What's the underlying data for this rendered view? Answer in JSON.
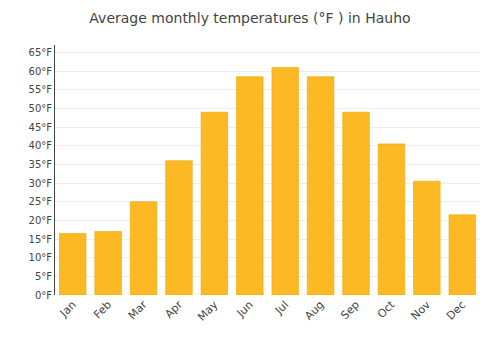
{
  "chart_data": {
    "type": "bar",
    "title": "Average monthly temperatures (°F ) in Hauho",
    "categories": [
      "Jan",
      "Feb",
      "Mar",
      "Apr",
      "May",
      "Jun",
      "Jul",
      "Aug",
      "Sep",
      "Oct",
      "Nov",
      "Dec"
    ],
    "values": [
      16.5,
      17.0,
      25.0,
      36.0,
      49.0,
      58.5,
      61.0,
      58.5,
      49.0,
      40.5,
      30.5,
      21.5
    ],
    "color": "#FDB924",
    "ylim": [
      0,
      67
    ],
    "yticks": [
      {
        "value": 0,
        "label": "0°F"
      },
      {
        "value": 5,
        "label": "5°F"
      },
      {
        "value": 10,
        "label": "10°F"
      },
      {
        "value": 15,
        "label": "15°F"
      },
      {
        "value": 20,
        "label": "20°F"
      },
      {
        "value": 25,
        "label": "25°F"
      },
      {
        "value": 30,
        "label": "30°F"
      },
      {
        "value": 35,
        "label": "35°F"
      },
      {
        "value": 40,
        "label": "40°F"
      },
      {
        "value": 45,
        "label": "45°F"
      },
      {
        "value": 50,
        "label": "50°F"
      },
      {
        "value": 55,
        "label": "55°F"
      },
      {
        "value": 60,
        "label": "60°F"
      },
      {
        "value": 65,
        "label": "65°F"
      }
    ],
    "grid": true
  }
}
